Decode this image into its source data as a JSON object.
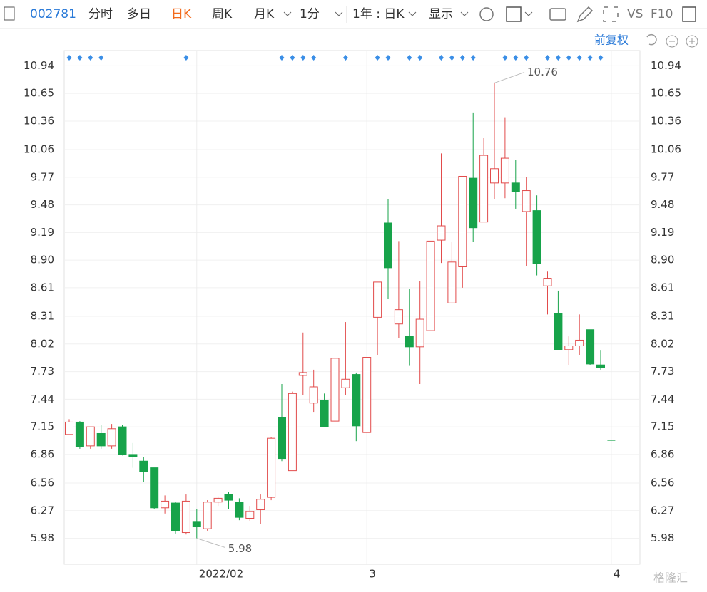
{
  "toolbar": {
    "code": "002781",
    "tabs": [
      "分时",
      "多日",
      "日K",
      "周K",
      "月K",
      "1分",
      "1年 : 日K",
      "显示"
    ],
    "vs": "VS",
    "f10": "F10",
    "adjust": "前复权"
  },
  "watermark": "格隆汇",
  "chart_data": {
    "type": "candlestick",
    "categories": [
      null,
      null,
      null,
      null,
      null,
      null,
      null,
      null,
      null,
      null,
      null,
      null,
      "2022/02",
      null,
      null,
      null,
      null,
      null,
      null,
      null,
      null,
      null,
      null,
      null,
      null,
      null,
      null,
      null,
      "3",
      null,
      null,
      null,
      null,
      null,
      null,
      null,
      null,
      null,
      null,
      null,
      null,
      null,
      null,
      null,
      null,
      null,
      null,
      null,
      null,
      null,
      null,
      "4"
    ],
    "open": [
      7.07,
      7.2,
      6.95,
      7.08,
      6.95,
      7.15,
      6.86,
      6.79,
      6.72,
      6.3,
      6.35,
      6.04,
      6.15,
      6.08,
      6.36,
      6.44,
      6.36,
      6.19,
      6.28,
      6.41,
      7.25,
      6.69,
      7.69,
      7.4,
      7.43,
      7.21,
      7.56,
      7.7,
      7.09,
      8.3,
      9.29,
      8.23,
      8.1,
      7.99,
      8.16,
      9.11,
      8.45,
      8.83,
      9.76,
      9.3,
      9.71,
      9.71,
      9.71,
      9.41,
      9.42,
      8.63,
      8.34,
      7.96,
      8.0,
      8.17,
      7.8,
      7.01
    ],
    "high": [
      7.23,
      7.21,
      7.15,
      7.17,
      7.18,
      7.17,
      6.98,
      6.83,
      6.72,
      6.43,
      6.36,
      6.44,
      6.29,
      6.38,
      6.42,
      6.47,
      6.4,
      6.32,
      6.44,
      7.04,
      7.6,
      7.52,
      8.14,
      7.75,
      7.5,
      7.87,
      8.25,
      7.72,
      7.88,
      8.67,
      9.54,
      9.1,
      8.6,
      8.68,
      9.1,
      10.02,
      9.09,
      9.78,
      10.45,
      10.18,
      10.76,
      10.4,
      9.95,
      9.77,
      9.58,
      8.78,
      8.58,
      8.1,
      8.33,
      8.17,
      7.95,
      7.01
    ],
    "low": [
      7.07,
      6.92,
      6.92,
      6.92,
      6.92,
      6.85,
      6.72,
      6.57,
      6.29,
      6.24,
      6.03,
      6.02,
      5.98,
      6.06,
      6.32,
      6.29,
      6.17,
      6.16,
      6.13,
      6.38,
      6.79,
      6.69,
      7.48,
      7.3,
      7.15,
      7.15,
      7.48,
      7.0,
      7.09,
      7.9,
      8.49,
      8.08,
      7.79,
      7.6,
      8.16,
      8.87,
      8.45,
      8.61,
      9.09,
      9.3,
      9.54,
      9.55,
      9.44,
      8.84,
      8.74,
      8.33,
      7.96,
      7.8,
      7.9,
      7.8,
      7.75,
      7.01
    ],
    "close": [
      7.2,
      6.94,
      7.15,
      6.95,
      7.13,
      6.86,
      6.84,
      6.68,
      6.3,
      6.37,
      6.06,
      6.37,
      6.1,
      6.36,
      6.4,
      6.38,
      6.2,
      6.26,
      6.39,
      7.03,
      6.81,
      7.5,
      7.72,
      7.57,
      7.15,
      7.87,
      7.65,
      7.16,
      7.88,
      8.67,
      8.82,
      8.38,
      7.99,
      8.28,
      9.1,
      9.26,
      8.88,
      9.78,
      9.24,
      10.0,
      9.86,
      9.97,
      9.62,
      9.63,
      8.86,
      8.71,
      7.96,
      8.0,
      8.06,
      7.81,
      7.77,
      7.01
    ],
    "up_color": "#e24b4b",
    "down_color": "#17a34a",
    "ylim": [
      5.7,
      11.1
    ],
    "yticks": [
      10.94,
      10.65,
      10.36,
      10.06,
      9.77,
      9.48,
      9.19,
      {
        "value": 8.9,
        "label": "8.90"
      },
      8.61,
      8.31,
      8.02,
      7.73,
      7.44,
      7.15,
      6.86,
      6.56,
      6.27,
      5.98
    ],
    "annotations": [
      {
        "label": "10.76"
      },
      {
        "label": "5.98"
      }
    ],
    "grid": true
  }
}
